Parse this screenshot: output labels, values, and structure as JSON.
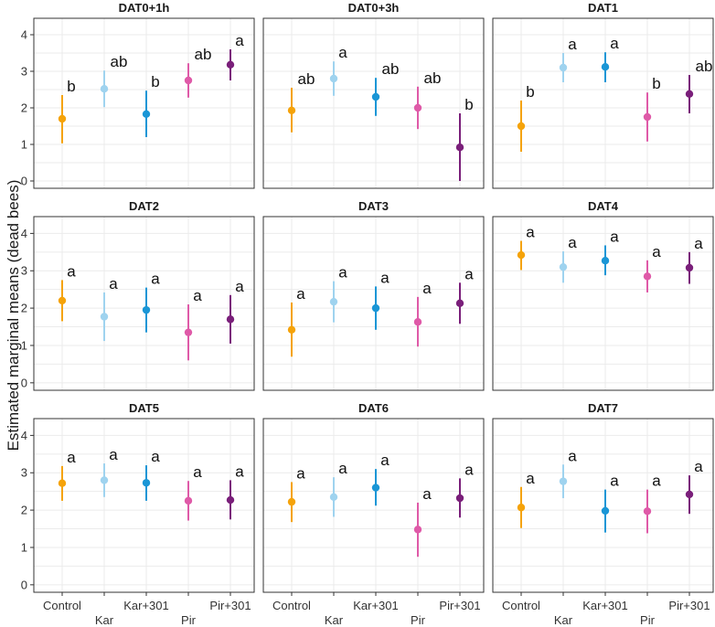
{
  "chart_data": {
    "type": "scatter",
    "subtype": "point-errorbar-faceted",
    "ylabel": "Estimated marginal means (dead bees)",
    "xlabel": "",
    "ylim": [
      -0.2,
      4.45
    ],
    "yticks": [
      0,
      1,
      2,
      3,
      4
    ],
    "categories": [
      "Control",
      "Kar",
      "Kar+301",
      "Pir",
      "Pir+301"
    ],
    "colors": {
      "Control": "#f5a30a",
      "Kar": "#9fd3ef",
      "Kar+301": "#1a96d6",
      "Pir": "#df5aa8",
      "Pir+301": "#7a1f7a"
    },
    "panels": [
      {
        "title": "DAT0+1h",
        "mean": [
          1.7,
          2.52,
          1.83,
          2.75,
          3.18
        ],
        "lower": [
          1.03,
          2.02,
          1.2,
          2.28,
          2.75
        ],
        "upper": [
          2.35,
          3.02,
          2.47,
          3.22,
          3.6
        ],
        "letters": [
          "b",
          "ab",
          "b",
          "ab",
          "a"
        ]
      },
      {
        "title": "DAT0+3h",
        "mean": [
          1.93,
          2.8,
          2.3,
          2.0,
          0.92
        ],
        "lower": [
          1.33,
          2.33,
          1.78,
          1.42,
          0.0
        ],
        "upper": [
          2.55,
          3.27,
          2.82,
          2.58,
          1.85
        ],
        "letters": [
          "ab",
          "a",
          "ab",
          "ab",
          "b"
        ]
      },
      {
        "title": "DAT1",
        "mean": [
          1.5,
          3.1,
          3.12,
          1.75,
          2.38
        ],
        "lower": [
          0.8,
          2.7,
          2.7,
          1.08,
          1.85
        ],
        "upper": [
          2.2,
          3.5,
          3.52,
          2.42,
          2.9
        ],
        "letters": [
          "b",
          "a",
          "a",
          "b",
          "ab"
        ]
      },
      {
        "title": "DAT2",
        "mean": [
          2.2,
          1.77,
          1.95,
          1.35,
          1.7
        ],
        "lower": [
          1.65,
          1.12,
          1.35,
          0.6,
          1.05
        ],
        "upper": [
          2.75,
          2.42,
          2.55,
          2.1,
          2.35
        ],
        "letters": [
          "a",
          "a",
          "a",
          "a",
          "a"
        ]
      },
      {
        "title": "DAT3",
        "mean": [
          1.42,
          2.17,
          2.0,
          1.63,
          2.13
        ],
        "lower": [
          0.7,
          1.62,
          1.42,
          0.97,
          1.58
        ],
        "upper": [
          2.15,
          2.72,
          2.58,
          2.3,
          2.68
        ],
        "letters": [
          "a",
          "a",
          "a",
          "a",
          "a"
        ]
      },
      {
        "title": "DAT4",
        "mean": [
          3.42,
          3.1,
          3.27,
          2.85,
          3.08
        ],
        "lower": [
          3.02,
          2.68,
          2.88,
          2.42,
          2.65
        ],
        "upper": [
          3.8,
          3.52,
          3.68,
          3.28,
          3.5
        ],
        "letters": [
          "a",
          "a",
          "a",
          "a",
          "a"
        ]
      },
      {
        "title": "DAT5",
        "mean": [
          2.72,
          2.8,
          2.73,
          2.25,
          2.27
        ],
        "lower": [
          2.25,
          2.35,
          2.25,
          1.72,
          1.75
        ],
        "upper": [
          3.18,
          3.25,
          3.2,
          2.78,
          2.8
        ],
        "letters": [
          "a",
          "a",
          "a",
          "a",
          "a"
        ]
      },
      {
        "title": "DAT6",
        "mean": [
          2.22,
          2.35,
          2.6,
          1.48,
          2.32
        ],
        "lower": [
          1.68,
          1.82,
          2.12,
          0.75,
          1.8
        ],
        "upper": [
          2.75,
          2.88,
          3.1,
          2.2,
          2.85
        ],
        "letters": [
          "a",
          "a",
          "a",
          "a",
          "a"
        ]
      },
      {
        "title": "DAT7",
        "mean": [
          2.07,
          2.77,
          1.98,
          1.97,
          2.42
        ],
        "lower": [
          1.52,
          2.32,
          1.4,
          1.38,
          1.9
        ],
        "upper": [
          2.62,
          3.22,
          2.55,
          2.55,
          2.93
        ],
        "letters": [
          "a",
          "a",
          "a",
          "a",
          "a"
        ]
      }
    ]
  }
}
